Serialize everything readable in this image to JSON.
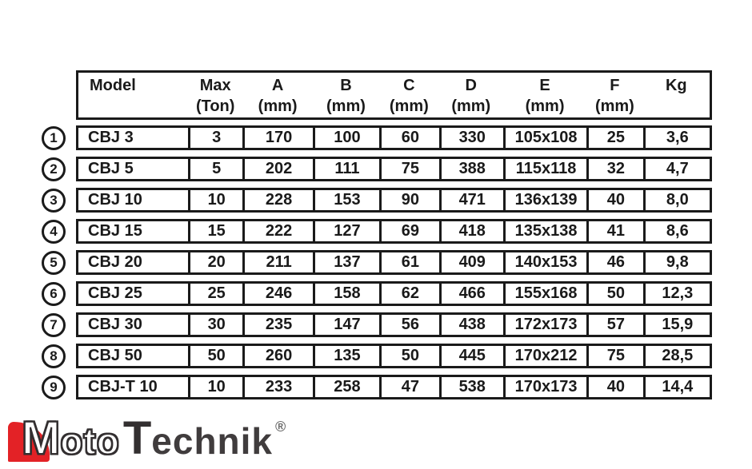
{
  "table": {
    "columns": [
      {
        "label": "Model",
        "unit": ""
      },
      {
        "label": "Max",
        "unit": "(Ton)"
      },
      {
        "label": "A",
        "unit": "(mm)"
      },
      {
        "label": "B",
        "unit": "(mm)"
      },
      {
        "label": "C",
        "unit": "(mm)"
      },
      {
        "label": "D",
        "unit": "(mm)"
      },
      {
        "label": "E",
        "unit": "(mm)"
      },
      {
        "label": "F",
        "unit": "(mm)"
      },
      {
        "label": "Kg",
        "unit": ""
      }
    ],
    "rows": [
      {
        "num": "1",
        "cells": [
          "CBJ 3",
          "3",
          "170",
          "100",
          "60",
          "330",
          "105x108",
          "25",
          "3,6"
        ]
      },
      {
        "num": "2",
        "cells": [
          "CBJ 5",
          "5",
          "202",
          "111",
          "75",
          "388",
          "115x118",
          "32",
          "4,7"
        ]
      },
      {
        "num": "3",
        "cells": [
          "CBJ 10",
          "10",
          "228",
          "153",
          "90",
          "471",
          "136x139",
          "40",
          "8,0"
        ]
      },
      {
        "num": "4",
        "cells": [
          "CBJ 15",
          "15",
          "222",
          "127",
          "69",
          "418",
          "135x138",
          "41",
          "8,6"
        ]
      },
      {
        "num": "5",
        "cells": [
          "CBJ 20",
          "20",
          "211",
          "137",
          "61",
          "409",
          "140x153",
          "46",
          "9,8"
        ]
      },
      {
        "num": "6",
        "cells": [
          "CBJ 25",
          "25",
          "246",
          "158",
          "62",
          "466",
          "155x168",
          "50",
          "12,3"
        ]
      },
      {
        "num": "7",
        "cells": [
          "CBJ 30",
          "30",
          "235",
          "147",
          "56",
          "438",
          "172x173",
          "57",
          "15,9"
        ]
      },
      {
        "num": "8",
        "cells": [
          "CBJ 50",
          "50",
          "260",
          "135",
          "50",
          "445",
          "170x212",
          "75",
          "28,5"
        ]
      },
      {
        "num": "9",
        "cells": [
          "CBJ-T 10",
          "10",
          "233",
          "258",
          "47",
          "538",
          "170x173",
          "40",
          "14,4"
        ]
      }
    ]
  },
  "logo": {
    "m": "M",
    "oto": "oto",
    "t": "T",
    "echnik": "echnik",
    "registered": "®",
    "red": "#e32226",
    "dark": "#403c3d"
  },
  "colors": {
    "border": "#1a1a1a",
    "background": "#ffffff"
  }
}
